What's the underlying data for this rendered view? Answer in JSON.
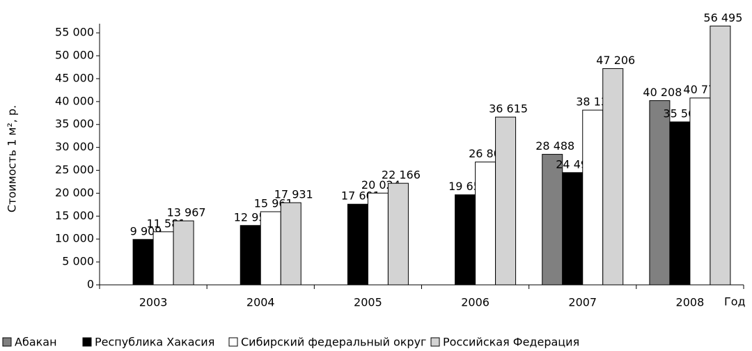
{
  "chart_data": {
    "type": "bar",
    "y_label": "Стоимость 1 м², р.",
    "x_label": "Год",
    "categories": [
      "2003",
      "2004",
      "2005",
      "2006",
      "2007",
      "2008"
    ],
    "series": [
      {
        "name": "Абакан",
        "color": "#808080",
        "values": [
          null,
          null,
          null,
          null,
          28488,
          40208
        ],
        "value_labels": [
          null,
          null,
          null,
          null,
          "28 488",
          "40 208"
        ]
      },
      {
        "name": "Республика Хакасия",
        "color": "#000000",
        "values": [
          9909,
          12956,
          17601,
          19655,
          24499,
          35567
        ],
        "value_labels": [
          "9 909",
          "12 956",
          "17 601",
          "19 655",
          "24 499",
          "35 567"
        ]
      },
      {
        "name": "Сибирский федеральный округ",
        "color": "#ffffff",
        "values": [
          11581,
          15961,
          20024,
          26806,
          38137,
          40776
        ],
        "value_labels": [
          "11 581",
          "15 961",
          "20 024",
          "26 806",
          "38 137",
          "40 776"
        ]
      },
      {
        "name": "Российская Федерация",
        "color": "#d3d3d3",
        "values": [
          13967,
          17931,
          22166,
          36615,
          47206,
          56495
        ],
        "value_labels": [
          "13 967",
          "17 931",
          "22 166",
          "36 615",
          "47 206",
          "56 495"
        ]
      }
    ],
    "ylim": [
      0,
      57000
    ],
    "yticks": [
      0,
      {
        "value": 5000,
        "label": "5 000"
      },
      {
        "value": 10000,
        "label": "10 000"
      },
      {
        "value": 15000,
        "label": "15 000"
      },
      {
        "value": 20000,
        "label": "20 000"
      },
      {
        "value": 25000,
        "label": "25 000"
      },
      {
        "value": 30000,
        "label": "30 000"
      },
      {
        "value": 35000,
        "label": "35 000"
      },
      {
        "value": 40000,
        "label": "40 000"
      },
      {
        "value": 45000,
        "label": "45 000"
      },
      {
        "value": 50000,
        "label": "50 000"
      },
      {
        "value": 55000,
        "label": "55 000"
      }
    ],
    "grid": false,
    "legend": "bottom"
  }
}
